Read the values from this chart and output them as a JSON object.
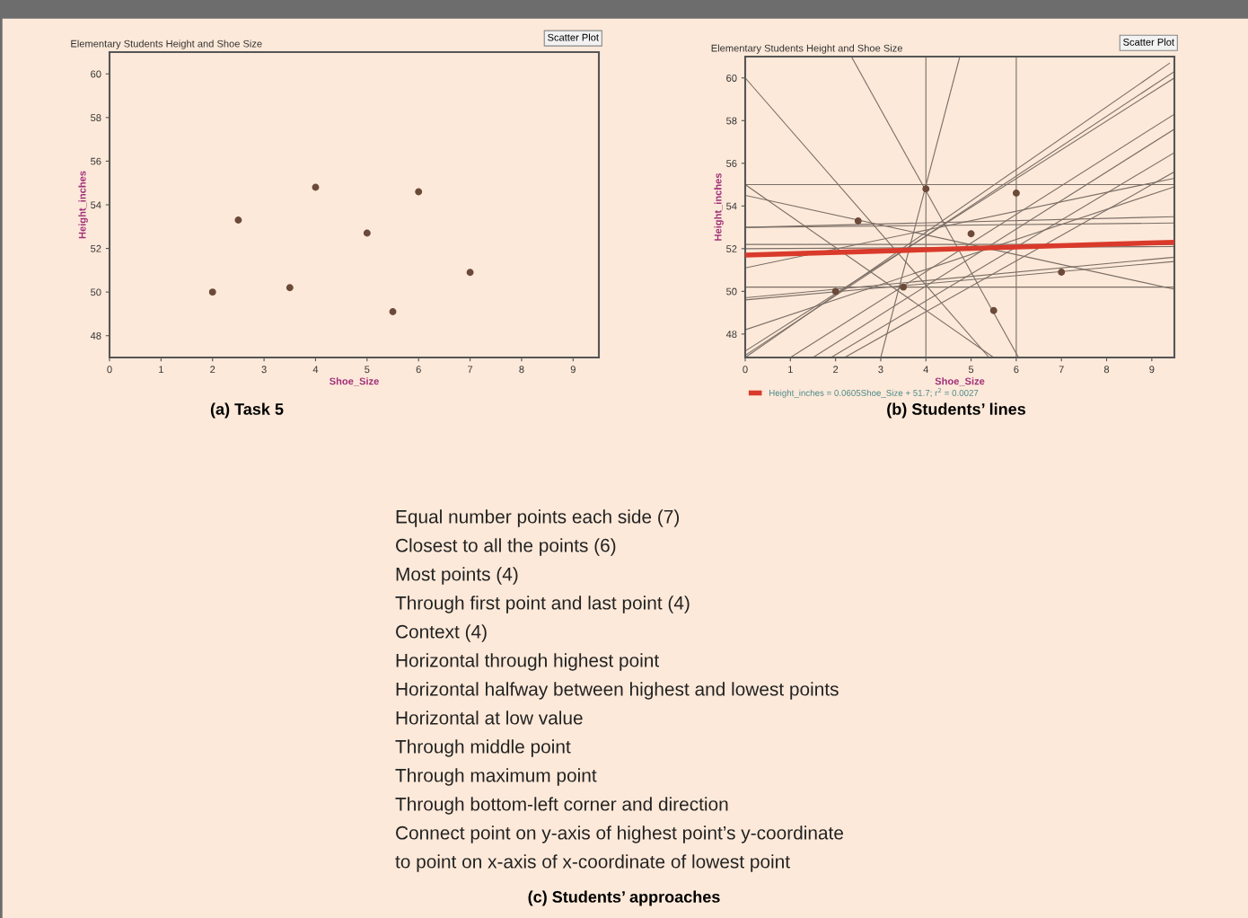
{
  "chart_data": [
    {
      "type": "scatter",
      "title": "Elementary Students Height and Shoe Size",
      "xlabel": "Shoe_Size",
      "ylabel": "Height_inches",
      "xlim": [
        0,
        9.5
      ],
      "ylim": [
        47,
        61
      ],
      "xticks": [
        0,
        1,
        2,
        3,
        4,
        5,
        6,
        7,
        8,
        9
      ],
      "yticks": [
        48,
        50,
        52,
        54,
        56,
        58,
        60
      ],
      "grid": false,
      "legend": false,
      "marker": "circle",
      "annotations": [
        "Scatter Plot",
        "(a) Task 5"
      ],
      "series": [
        {
          "type": "scatter",
          "color": "#6b4a3a",
          "x": [
            2,
            2.5,
            3.5,
            4,
            5,
            5.5,
            6,
            7
          ],
          "values": [
            50,
            53.3,
            50.2,
            54.8,
            52.7,
            49.1,
            54.6,
            50.9
          ]
        }
      ]
    },
    {
      "type": "scatter",
      "title": "Elementary Students Height and Shoe Size",
      "xlabel": "Shoe_Size",
      "ylabel": "Height_inches",
      "xlim": [
        0,
        9.5
      ],
      "ylim": [
        46.9,
        61.0
      ],
      "xticks": [
        0,
        1,
        2,
        3,
        4,
        5,
        6,
        7,
        8,
        9
      ],
      "yticks": [
        48,
        50,
        52,
        54,
        56,
        58,
        60
      ],
      "grid": false,
      "legend": "bottom",
      "marker": "none",
      "annotations": [
        "Scatter Plot",
        "(b) Students’ lines"
      ],
      "series": [
        {
          "type": "line",
          "color": "#7a6e66",
          "x": [
            4,
            4
          ],
          "values": [
            46.9,
            61.0
          ]
        },
        {
          "type": "line",
          "color": "#7a6e66",
          "x": [
            6,
            6
          ],
          "values": [
            46.9,
            61.0
          ]
        },
        {
          "type": "line",
          "color": "#7a6e66",
          "x": [
            0,
            9.5
          ],
          "values": [
            55.0,
            55.0
          ]
        },
        {
          "type": "line",
          "color": "#7a6e66",
          "x": [
            0,
            9.5
          ],
          "values": [
            53.0,
            53.2
          ]
        },
        {
          "type": "line",
          "color": "#7a6e66",
          "x": [
            0,
            9.5
          ],
          "values": [
            53.0,
            53.5
          ]
        },
        {
          "type": "line",
          "color": "#7a6e66",
          "x": [
            0,
            9.5
          ],
          "values": [
            52.2,
            52.2
          ]
        },
        {
          "type": "line",
          "color": "#7a6e66",
          "x": [
            0,
            9.5
          ],
          "values": [
            52.0,
            52.1
          ]
        },
        {
          "type": "line",
          "color": "#7a6e66",
          "x": [
            0,
            9.5
          ],
          "values": [
            50.2,
            50.2
          ]
        },
        {
          "type": "line",
          "color": "#7a6e66",
          "x": [
            0,
            5.4
          ],
          "values": [
            60.0,
            46.9
          ]
        },
        {
          "type": "line",
          "color": "#7a6e66",
          "x": [
            2.35,
            6.05
          ],
          "values": [
            61.0,
            46.9
          ]
        },
        {
          "type": "line",
          "color": "#7a6e66",
          "x": [
            0,
            5.5
          ],
          "values": [
            55.0,
            46.9
          ]
        },
        {
          "type": "line",
          "color": "#7a6e66",
          "x": [
            0,
            9.5
          ],
          "values": [
            54.5,
            50.1
          ]
        },
        {
          "type": "line",
          "color": "#7a6e66",
          "x": [
            3.0,
            4.75
          ],
          "values": [
            46.9,
            61.0
          ]
        },
        {
          "type": "line",
          "color": "#7a6e66",
          "x": [
            0,
            9.4
          ],
          "values": [
            46.9,
            60.7
          ]
        },
        {
          "type": "line",
          "color": "#7a6e66",
          "x": [
            0,
            9.5
          ],
          "values": [
            47.0,
            60.3
          ]
        },
        {
          "type": "line",
          "color": "#7a6e66",
          "x": [
            0,
            9.5
          ],
          "values": [
            47.2,
            60.0
          ]
        },
        {
          "type": "line",
          "color": "#7a6e66",
          "x": [
            0,
            9.5
          ],
          "values": [
            48.2,
            54.9
          ]
        },
        {
          "type": "line",
          "color": "#7a6e66",
          "x": [
            1.0,
            9.5
          ],
          "values": [
            46.9,
            58.3
          ]
        },
        {
          "type": "line",
          "color": "#7a6e66",
          "x": [
            1.5,
            9.5
          ],
          "values": [
            46.9,
            57.6
          ]
        },
        {
          "type": "line",
          "color": "#7a6e66",
          "x": [
            1.9,
            9.5
          ],
          "values": [
            46.9,
            56.5
          ]
        },
        {
          "type": "line",
          "color": "#7a6e66",
          "x": [
            2.2,
            9.5
          ],
          "values": [
            46.9,
            55.6
          ]
        },
        {
          "type": "line",
          "color": "#7a6e66",
          "x": [
            0,
            9.5
          ],
          "values": [
            49.6,
            51.4
          ]
        },
        {
          "type": "line",
          "color": "#7a6e66",
          "x": [
            0,
            9.5
          ],
          "values": [
            49.7,
            51.6
          ]
        },
        {
          "type": "line",
          "color": "#7a6e66",
          "x": [
            0,
            9.5
          ],
          "values": [
            51.1,
            55.3
          ]
        },
        {
          "type": "scatter",
          "marker": "circle",
          "color": "#6b4a3a",
          "x": [
            2,
            2.5,
            3.5,
            4,
            5,
            5.5,
            6,
            7
          ],
          "values": [
            50,
            53.3,
            50.2,
            54.8,
            52.7,
            49.1,
            54.6,
            50.9
          ]
        },
        {
          "type": "line",
          "name": "Height_inches = 0.0605Shoe_Size + 51.7; r$^{2}$ = 0.0027",
          "color": "#d93a2b",
          "x": [
            0,
            9.5
          ],
          "values": [
            51.7,
            52.3
          ]
        }
      ]
    },
    {
      "type": "other",
      "title": "(c) Students’ approaches",
      "annotations": [
        "Equal number points each side (7)",
        "Closest to all the points (6)",
        "Most points (4)",
        "Through first point and last point (4)",
        "Context (4)",
        "Horizontal through highest point",
        "Horizontal halfway between highest and lowest points",
        "Horizontal at low value",
        "Through middle point",
        "Through maximum point",
        "Through bottom-left corner and direction",
        "Connect point on y-axis of highest point’s y-coordinate",
        "to point on x-axis of x-coordinate of lowest point"
      ]
    }
  ]
}
